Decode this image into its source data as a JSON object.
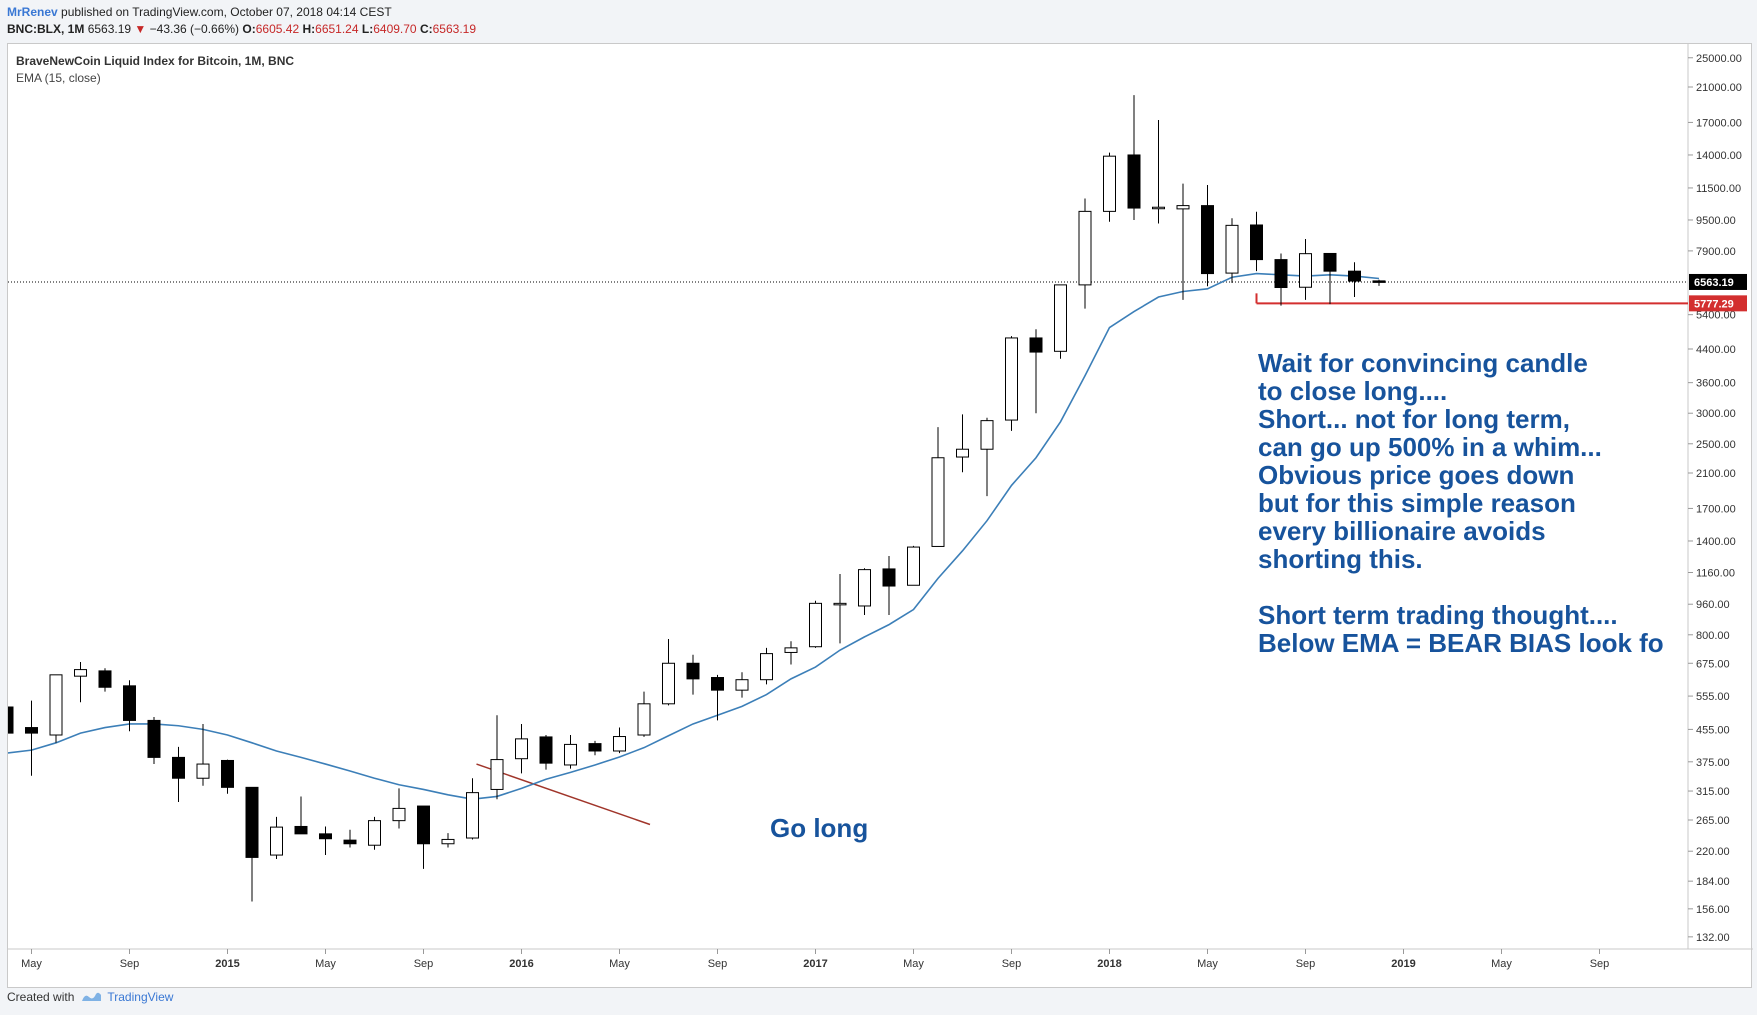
{
  "header": {
    "author": "MrRenev",
    "published": "published on TradingView.com, October 07, 2018 04:14 CEST",
    "symbol": "BNC:BLX, 1M",
    "last": "6563.19",
    "change": "−43.36 (−0.66%)",
    "open_label": "O:",
    "open": "6605.42",
    "high_label": "H:",
    "high": "6651.24",
    "low_label": "L:",
    "low": "6409.70",
    "close_label": "C:",
    "close": "6563.19"
  },
  "legend": {
    "title": "BraveNewCoin Liquid Index for Bitcoin, 1M, BNC",
    "indicator": "EMA (15, close)"
  },
  "footer": {
    "created": "Created with",
    "brand": "TradingView"
  },
  "colors": {
    "ema": "#3c7fb8",
    "support": "#d32f2f",
    "annotation": "#17539c",
    "trendline": "#a0352a",
    "candle_down": "#000000",
    "candle_up": "#ffffff"
  },
  "chart_data": {
    "type": "candlestick",
    "scale": "log",
    "ylim": [
      128,
      26500
    ],
    "price_ticks": [
      "25000.00",
      "21000.00",
      "17000.00",
      "14000.00",
      "11500.00",
      "9500.00",
      "7900.00",
      "6563.19",
      "5400.00",
      "4400.00",
      "3600.00",
      "3000.00",
      "2500.00",
      "2100.00",
      "1700.00",
      "1400.00",
      "1160.00",
      "960.00",
      "800.00",
      "675.00",
      "555.00",
      "455.00",
      "375.00",
      "315.00",
      "265.00",
      "220.00",
      "184.00",
      "156.00",
      "132.00"
    ],
    "time_labels": [
      {
        "label": "May",
        "month": 0
      },
      {
        "label": "Sep",
        "month": 4
      },
      {
        "label": "2015",
        "month": 8
      },
      {
        "label": "May",
        "month": 12
      },
      {
        "label": "Sep",
        "month": 16
      },
      {
        "label": "2016",
        "month": 20
      },
      {
        "label": "May",
        "month": 24
      },
      {
        "label": "Sep",
        "month": 28
      },
      {
        "label": "2017",
        "month": 32
      },
      {
        "label": "May",
        "month": 36
      },
      {
        "label": "Sep",
        "month": 40
      },
      {
        "label": "2018",
        "month": 44
      },
      {
        "label": "May",
        "month": 48
      },
      {
        "label": "Sep",
        "month": 52
      },
      {
        "label": "2019",
        "month": 56
      },
      {
        "label": "May",
        "month": 60
      },
      {
        "label": "Sep",
        "month": 64
      }
    ],
    "candles": [
      {
        "o": 520,
        "h": 640,
        "l": 410,
        "c": 445
      },
      {
        "o": 460,
        "h": 540,
        "l": 345,
        "c": 445
      },
      {
        "o": 440,
        "h": 550,
        "l": 420,
        "c": 630
      },
      {
        "o": 625,
        "h": 680,
        "l": 535,
        "c": 650
      },
      {
        "o": 645,
        "h": 655,
        "l": 570,
        "c": 585
      },
      {
        "o": 590,
        "h": 610,
        "l": 450,
        "c": 480
      },
      {
        "o": 480,
        "h": 490,
        "l": 370,
        "c": 385
      },
      {
        "o": 385,
        "h": 410,
        "l": 295,
        "c": 340
      },
      {
        "o": 340,
        "h": 470,
        "l": 325,
        "c": 370
      },
      {
        "o": 378,
        "h": 380,
        "l": 310,
        "c": 322
      },
      {
        "o": 322,
        "h": 322,
        "l": 163,
        "c": 212
      },
      {
        "o": 215,
        "h": 270,
        "l": 210,
        "c": 254
      },
      {
        "o": 255,
        "h": 305,
        "l": 245,
        "c": 244
      },
      {
        "o": 244,
        "h": 255,
        "l": 215,
        "c": 237
      },
      {
        "o": 235,
        "h": 250,
        "l": 225,
        "c": 230
      },
      {
        "o": 228,
        "h": 270,
        "l": 222,
        "c": 264
      },
      {
        "o": 264,
        "h": 320,
        "l": 252,
        "c": 284
      },
      {
        "o": 288,
        "h": 288,
        "l": 198,
        "c": 230
      },
      {
        "o": 230,
        "h": 245,
        "l": 225,
        "c": 236
      },
      {
        "o": 238,
        "h": 340,
        "l": 236,
        "c": 312
      },
      {
        "o": 318,
        "h": 495,
        "l": 300,
        "c": 380
      },
      {
        "o": 382,
        "h": 470,
        "l": 350,
        "c": 430
      },
      {
        "o": 435,
        "h": 440,
        "l": 358,
        "c": 372
      },
      {
        "o": 368,
        "h": 440,
        "l": 360,
        "c": 416
      },
      {
        "o": 418,
        "h": 425,
        "l": 390,
        "c": 400
      },
      {
        "o": 400,
        "h": 460,
        "l": 395,
        "c": 436
      },
      {
        "o": 440,
        "h": 570,
        "l": 435,
        "c": 530
      },
      {
        "o": 530,
        "h": 780,
        "l": 525,
        "c": 675
      },
      {
        "o": 675,
        "h": 710,
        "l": 560,
        "c": 615
      },
      {
        "o": 620,
        "h": 630,
        "l": 480,
        "c": 575
      },
      {
        "o": 575,
        "h": 640,
        "l": 550,
        "c": 612
      },
      {
        "o": 612,
        "h": 740,
        "l": 595,
        "c": 715
      },
      {
        "o": 720,
        "h": 770,
        "l": 670,
        "c": 740
      },
      {
        "o": 745,
        "h": 980,
        "l": 740,
        "c": 965
      },
      {
        "o": 965,
        "h": 1150,
        "l": 760,
        "c": 965
      },
      {
        "o": 950,
        "h": 1190,
        "l": 900,
        "c": 1180
      },
      {
        "o": 1185,
        "h": 1280,
        "l": 900,
        "c": 1070
      },
      {
        "o": 1075,
        "h": 1360,
        "l": 1075,
        "c": 1350
      },
      {
        "o": 1355,
        "h": 2760,
        "l": 1355,
        "c": 2300
      },
      {
        "o": 2310,
        "h": 2980,
        "l": 2110,
        "c": 2420
      },
      {
        "o": 2420,
        "h": 2920,
        "l": 1830,
        "c": 2870
      },
      {
        "o": 2880,
        "h": 4750,
        "l": 2700,
        "c": 4700
      },
      {
        "o": 4700,
        "h": 4950,
        "l": 3000,
        "c": 4320
      },
      {
        "o": 4340,
        "h": 6300,
        "l": 4150,
        "c": 6450
      },
      {
        "o": 6450,
        "h": 10800,
        "l": 5600,
        "c": 10000
      },
      {
        "o": 10000,
        "h": 14200,
        "l": 9400,
        "c": 13900
      },
      {
        "o": 14000,
        "h": 20000,
        "l": 9500,
        "c": 10200
      },
      {
        "o": 10200,
        "h": 17250,
        "l": 9300,
        "c": 10250
      },
      {
        "o": 10150,
        "h": 11800,
        "l": 5900,
        "c": 10350
      },
      {
        "o": 10350,
        "h": 11700,
        "l": 6400,
        "c": 6900
      },
      {
        "o": 6920,
        "h": 9600,
        "l": 6530,
        "c": 9200
      },
      {
        "o": 9220,
        "h": 9980,
        "l": 7000,
        "c": 7500
      },
      {
        "o": 7500,
        "h": 7780,
        "l": 5700,
        "c": 6350
      },
      {
        "o": 6360,
        "h": 8480,
        "l": 5900,
        "c": 7770
      },
      {
        "o": 7780,
        "h": 7780,
        "l": 5750,
        "c": 7000
      },
      {
        "o": 7000,
        "h": 7380,
        "l": 6000,
        "c": 6600
      },
      {
        "o": 6605.42,
        "h": 6651.24,
        "l": 6409.7,
        "c": 6563.19
      }
    ],
    "ema": [
      395,
      402,
      420,
      445,
      460,
      470,
      470,
      465,
      455,
      440,
      420,
      400,
      385,
      370,
      355,
      340,
      327,
      318,
      308,
      300,
      305,
      320,
      338,
      352,
      368,
      386,
      408,
      438,
      470,
      495,
      522,
      560,
      615,
      660,
      730,
      790,
      850,
      930,
      1120,
      1320,
      1580,
      1950,
      2300,
      2850,
      3750,
      5000,
      5500,
      6000,
      6200,
      6300,
      6750,
      6900,
      6850,
      6800,
      6850,
      6800,
      6700
    ],
    "current_price": 6563.19,
    "support_level": 5777.29,
    "support_label": "5777.29",
    "current_label": "6563.19",
    "annotations": {
      "go_long": "Go long",
      "note_lines": [
        "Wait for convincing candle",
        "to close long....",
        "Short... not for long term,",
        "can go up 500% in a whim...",
        "Obvious price goes down",
        "but for this simple reason",
        "every billionaire avoids",
        "shorting this.",
        "",
        "Short term trading thought....",
        "Below EMA = BEAR BIAS look fo"
      ]
    }
  }
}
